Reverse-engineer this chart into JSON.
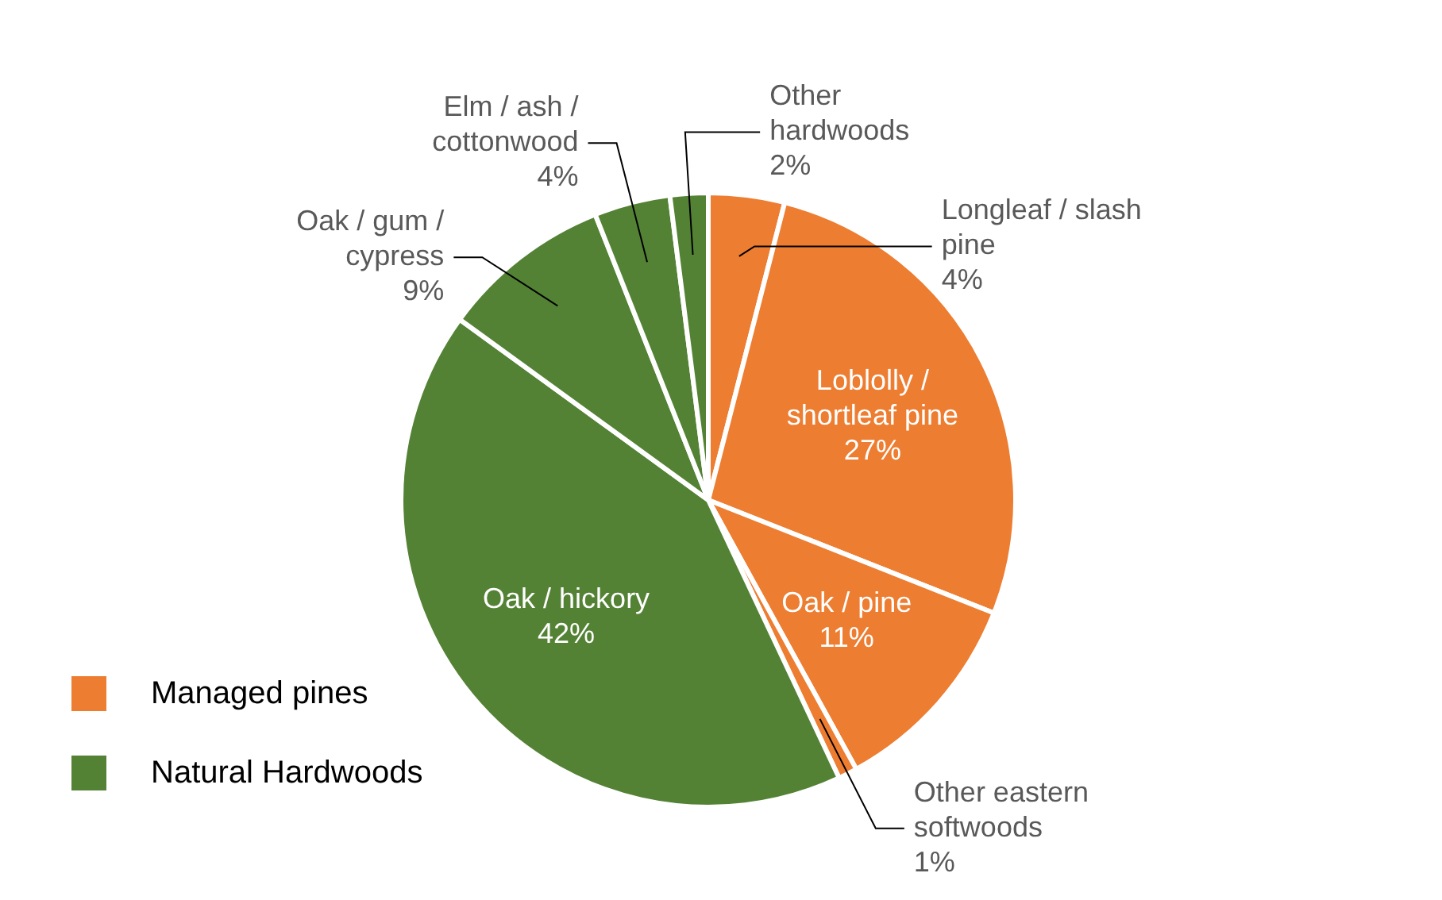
{
  "chart_data": {
    "type": "pie",
    "categories": [
      "Longleaf / slash pine",
      "Loblolly / shortleaf pine",
      "Oak / pine",
      "Other eastern softwoods",
      "Oak / hickory",
      "Oak / gum / cypress",
      "Elm / ash / cottonwood",
      "Other hardwoods"
    ],
    "values": [
      4,
      27,
      11,
      1,
      42,
      9,
      4,
      2
    ],
    "colors": [
      "#ed7d31",
      "#ed7d31",
      "#ed7d31",
      "#ed7d31",
      "#548235",
      "#548235",
      "#548235",
      "#548235"
    ],
    "value_labels": [
      "4%",
      "27%",
      "11%",
      "1%",
      "42%",
      "9%",
      "4%",
      "2%"
    ],
    "annotations": [
      "Managed pines",
      "Natural Hardwoods"
    ]
  }
}
